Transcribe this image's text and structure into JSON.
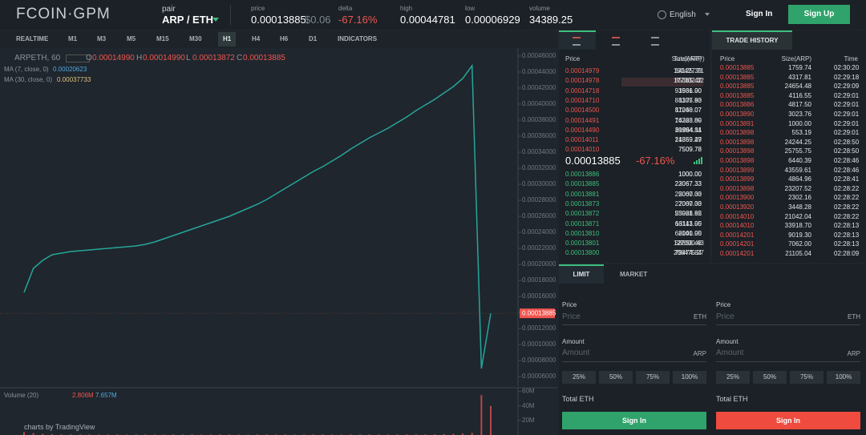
{
  "header": {
    "logo": "FCOIN·GPM",
    "pair_label": "pair",
    "pair": "ARP / ETH",
    "stats": [
      {
        "label": "price",
        "value": "0.00013885",
        "extra": "$0.06"
      },
      {
        "label": "delta",
        "value": "-67.16%"
      },
      {
        "label": "high",
        "value": "0.00044781"
      },
      {
        "label": "low",
        "value": "0.00006929"
      },
      {
        "label": "volume",
        "value": "34389.25"
      }
    ],
    "language": "English",
    "sign_in": "Sign In",
    "sign_up": "Sign Up"
  },
  "toolbar": {
    "intervals": [
      "REALTIME",
      "M1",
      "M3",
      "M5",
      "M15",
      "M30",
      "H1",
      "H4",
      "H6",
      "D1"
    ],
    "active": "H1",
    "indicators": "INDICATORS"
  },
  "chart_legend": {
    "symbol": "ARPETH, 60",
    "ohlc": [
      {
        "key": "O",
        "value": "0.00014990"
      },
      {
        "key": "H",
        "value": "0.00014990"
      },
      {
        "key": "L",
        "value": "0.00013872"
      },
      {
        "key": "C",
        "value": "0.00013885"
      }
    ],
    "ma": [
      {
        "label": "MA (7, close, 0)",
        "value": "0.00020623"
      },
      {
        "label": "MA (30, close, 0)",
        "value": "0.00037733"
      }
    ],
    "volume_label": "Volume (20)",
    "volume_values": [
      "2.806M",
      "7.657M"
    ],
    "credit": "charts by TradingView"
  },
  "chart_data": [
    {
      "type": "line",
      "color": "#26a69a",
      "grid": false,
      "current_price_label": "0.00013885",
      "values": [
        0.000165,
        0.000195,
        0.000205,
        0.000212,
        0.000214,
        0.000216,
        0.000217,
        0.000218,
        0.000219,
        0.00022,
        0.000221,
        0.000222,
        0.000223,
        0.000225,
        0.000228,
        0.000232,
        0.000236,
        0.00024,
        0.000244,
        0.000248,
        0.000252,
        0.000256,
        0.00026,
        0.000265,
        0.00027,
        0.000275,
        0.000281,
        0.000288,
        0.000295,
        0.000302,
        0.000309,
        0.000316,
        0.000322,
        0.000329,
        0.000336,
        0.000344,
        0.000351,
        0.000358,
        0.000364,
        0.00037,
        0.000377,
        0.000384,
        0.000392,
        0.000399,
        0.000406,
        0.000414,
        0.000422,
        0.000432,
        0.000448,
        7e-05,
        0.00013885
      ],
      "ylim": [
        4.8e-05,
        0.000468
      ],
      "yticks": [
        {
          "value": 0.00046,
          "label": "0.00046000"
        },
        {
          "value": 0.00044,
          "label": "0.00044000"
        },
        {
          "value": 0.00042,
          "label": "0.00042000"
        },
        {
          "value": 0.0004,
          "label": "0.00040000"
        },
        {
          "value": 0.00038,
          "label": "0.00038000"
        },
        {
          "value": 0.00036,
          "label": "0.00036000"
        },
        {
          "value": 0.00034,
          "label": "0.00034000"
        },
        {
          "value": 0.00032,
          "label": "0.00032000"
        },
        {
          "value": 0.0003,
          "label": "0.00030000"
        },
        {
          "value": 0.00028,
          "label": "0.00028000"
        },
        {
          "value": 0.00026,
          "label": "0.00026000"
        },
        {
          "value": 0.00024,
          "label": "0.00024000"
        },
        {
          "value": 0.00022,
          "label": "0.00022000"
        },
        {
          "value": 0.0002,
          "label": "0.00020000"
        },
        {
          "value": 0.00018,
          "label": "0.00018000"
        },
        {
          "value": 0.00016,
          "label": "0.00016000"
        },
        {
          "value": 0.00014,
          "label": "0.00014000"
        },
        {
          "value": 0.00012,
          "label": "0.00012000"
        },
        {
          "value": 0.0001,
          "label": "0.00010000"
        },
        {
          "value": 8e-05,
          "label": "0.00008000"
        },
        {
          "value": 6e-05,
          "label": "0.00006000"
        }
      ]
    },
    {
      "type": "bar",
      "color": "#ef5350",
      "values": [
        4000000,
        2500000,
        1500000,
        1200000,
        900000,
        800000,
        700000,
        800000,
        600000,
        700000,
        900000,
        600000,
        700000,
        800000,
        700000,
        600000,
        900000,
        700000,
        800000,
        600000,
        700000,
        900000,
        800000,
        700000,
        600000,
        800000,
        900000,
        700000,
        800000,
        600000,
        700000,
        800000,
        900000,
        700000,
        600000,
        800000,
        700000,
        900000,
        800000,
        700000,
        900000,
        1000000,
        800000,
        900000,
        1100000,
        1200000,
        1500000,
        2000000,
        3000000,
        55000000,
        40000000
      ],
      "ylim": [
        0,
        64000000
      ],
      "yticks": [
        {
          "value": 60000000,
          "label": "60M"
        },
        {
          "value": 40000000,
          "label": "40M"
        },
        {
          "value": 20000000,
          "label": "20M"
        }
      ]
    }
  ],
  "order_book": {
    "columns": [
      "Price",
      "Size(ARP)",
      "Total(ARP)"
    ],
    "asks": [
      [
        "0.00014979",
        "14125.39",
        "191427.71"
      ],
      [
        "0.00014978",
        "85365.42",
        "177302.32"
      ],
      [
        "0.00014718",
        "3561.00",
        "91936.90"
      ],
      [
        "0.00014710",
        "1107.83",
        "88375.90"
      ],
      [
        "0.00014500",
        "11040.07",
        "87268.07"
      ],
      [
        "0.00014491",
        "14363.89",
        "76228.00"
      ],
      [
        "0.00014490",
        "39994.84",
        "61864.11"
      ],
      [
        "0.00014011",
        "14359.49",
        "21869.27"
      ],
      [
        "0.00014010",
        "7509.78",
        "7509.78"
      ]
    ],
    "last_price": "0.00013885",
    "change": "-67.16%",
    "bids": [
      [
        "0.00013886",
        "1000.00",
        "1000.00"
      ],
      [
        "0.00013885",
        "22067.33",
        "23067.33"
      ],
      [
        "0.00013881",
        "2000.00",
        "25067.33"
      ],
      [
        "0.00013873",
        "2000.00",
        "27067.33"
      ],
      [
        "0.00013872",
        "25961.62",
        "53028.95"
      ],
      [
        "0.00013871",
        "13113.00",
        "66141.95"
      ],
      [
        "0.00013810",
        "2000.00",
        "68141.95"
      ],
      [
        "0.00013801",
        "58858.48",
        "127000.43"
      ],
      [
        "0.00013800",
        "79474.84",
        "206475.27"
      ]
    ]
  },
  "trade_history": {
    "tab": "TRADE HISTORY",
    "columns": [
      "Price",
      "Size(ARP)",
      "Time"
    ],
    "rows": [
      [
        "0.00013885",
        "1759.74",
        "02:30:20"
      ],
      [
        "0.00013885",
        "4317.81",
        "02:29:18"
      ],
      [
        "0.00013885",
        "24654.48",
        "02:29:09"
      ],
      [
        "0.00013885",
        "4116.55",
        "02:29:01"
      ],
      [
        "0.00013886",
        "4817.50",
        "02:29:01"
      ],
      [
        "0.00013890",
        "3023.76",
        "02:29:01"
      ],
      [
        "0.00013891",
        "1000.00",
        "02:29:01"
      ],
      [
        "0.00013898",
        "553.19",
        "02:29:01"
      ],
      [
        "0.00013898",
        "24244.25",
        "02:28:50"
      ],
      [
        "0.00013898",
        "25755.75",
        "02:28:50"
      ],
      [
        "0.00013898",
        "6440.39",
        "02:28:46"
      ],
      [
        "0.00013899",
        "43559.61",
        "02:28:46"
      ],
      [
        "0.00013899",
        "4864.96",
        "02:28:41"
      ],
      [
        "0.00013898",
        "23207.52",
        "02:28:22"
      ],
      [
        "0.00013900",
        "2302.16",
        "02:28:22"
      ],
      [
        "0.00013920",
        "3448.28",
        "02:28:22"
      ],
      [
        "0.00014010",
        "21042.04",
        "02:28:22"
      ],
      [
        "0.00014010",
        "33918.70",
        "02:28:13"
      ],
      [
        "0.00014201",
        "9019.30",
        "02:28:13"
      ],
      [
        "0.00014201",
        "7062.00",
        "02:28:13"
      ],
      [
        "0.00014201",
        "21105.04",
        "02:28:09"
      ]
    ]
  },
  "order_form": {
    "tabs": [
      "LIMIT",
      "MARKET"
    ],
    "sides": [
      {
        "price_label": "Price",
        "price_placeholder": "Price",
        "price_unit": "ETH",
        "amount_label": "Amount",
        "amount_placeholder": "Amount",
        "amount_unit": "ARP",
        "percents": [
          "25%",
          "50%",
          "75%",
          "100%"
        ],
        "total": "Total ETH",
        "button": "Sign In",
        "color": "#2fa36b"
      },
      {
        "price_label": "Price",
        "price_placeholder": "Price",
        "price_unit": "ETH",
        "amount_label": "Amount",
        "amount_placeholder": "Amount",
        "amount_unit": "ARP",
        "percents": [
          "25%",
          "50%",
          "75%",
          "100%"
        ],
        "total": "Total ETH",
        "button": "Sign In",
        "color": "#ef4b3f"
      }
    ]
  }
}
